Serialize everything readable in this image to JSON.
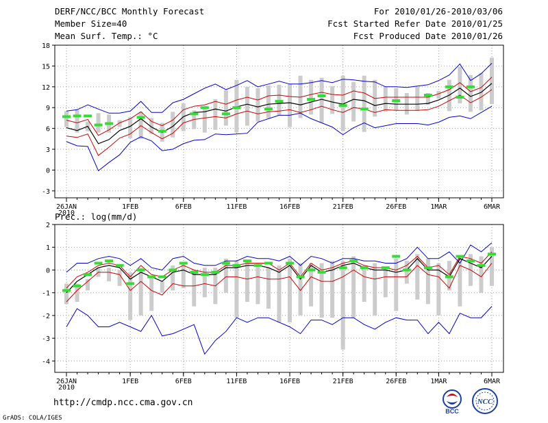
{
  "header": {
    "title": "DERF/NCC/BCC Monthly Forecast",
    "member_size": "Member Size=40",
    "period": "For 2010/01/26-2010/03/06",
    "fcst_started": "Fcst Started Refer Date 2010/01/25",
    "fcst_produced": "Fcst Produced Date 2010/01/26"
  },
  "footer": {
    "url": "http://cmdp.ncc.cma.gov.cn",
    "grads_credit": "GrADS: COLA/IGES"
  },
  "logos": {
    "bcc_text": "BCC",
    "ncc_text": "NCC"
  },
  "colors": {
    "ensemble_range": "#0000cc",
    "spread_band": "#cc0000",
    "ensemble_mean": "#000000",
    "observation": "#33dd33",
    "member_bar": "#cccccc",
    "grid": "#999999"
  },
  "chart_data": [
    {
      "type": "line",
      "title": "Mean Surf. Temp.: °C",
      "x_tick_labels": [
        "26JAN",
        "1FEB",
        "6FEB",
        "11FEB",
        "16FEB",
        "21FEB",
        "26FEB",
        "1MAR",
        "6MAR"
      ],
      "x_tick_days": [
        0,
        6,
        11,
        16,
        21,
        26,
        31,
        35,
        40
      ],
      "x_sublabel": "2010",
      "ylim": [
        -4,
        18
      ],
      "yticks": [
        -3,
        0,
        3,
        6,
        9,
        12,
        15,
        18
      ],
      "days": [
        0,
        1,
        2,
        3,
        4,
        5,
        6,
        7,
        8,
        9,
        10,
        11,
        12,
        13,
        14,
        15,
        16,
        17,
        18,
        19,
        20,
        21,
        22,
        23,
        24,
        25,
        26,
        27,
        28,
        29,
        30,
        31,
        32,
        33,
        34,
        35,
        36,
        37,
        38,
        39,
        40
      ],
      "series": [
        {
          "name": "max",
          "values": [
            8.5,
            8.7,
            9.4,
            8.8,
            8.2,
            8.2,
            8.5,
            9.9,
            8.3,
            8.3,
            9.7,
            10.2,
            11.0,
            11.8,
            12.4,
            11.6,
            12.2,
            12.9,
            12.0,
            12.4,
            12.8,
            12.4,
            12.4,
            12.6,
            12.9,
            12.6,
            13.1,
            13.0,
            12.8,
            12.7,
            12.0,
            12.0,
            11.9,
            12.1,
            12.3,
            12.9,
            13.7,
            15.3,
            12.9,
            13.9,
            15.4
          ]
        },
        {
          "name": "upper",
          "values": [
            7.2,
            6.8,
            7.3,
            5.0,
            5.8,
            6.8,
            7.4,
            8.4,
            7.0,
            6.4,
            7.2,
            8.7,
            9.2,
            9.4,
            9.9,
            9.5,
            10.1,
            10.5,
            10.1,
            10.7,
            10.8,
            10.6,
            10.5,
            10.9,
            11.2,
            10.9,
            10.8,
            11.4,
            11.1,
            10.3,
            10.5,
            10.5,
            10.5,
            10.5,
            10.5,
            11.0,
            11.6,
            12.6,
            11.3,
            11.9,
            13.4
          ]
        },
        {
          "name": "mean",
          "values": [
            6.1,
            5.7,
            6.3,
            3.8,
            4.4,
            5.7,
            6.3,
            7.4,
            6.2,
            5.4,
            6.3,
            7.7,
            8.3,
            8.4,
            8.8,
            8.5,
            9.1,
            9.5,
            9.1,
            9.5,
            9.6,
            9.7,
            9.4,
            9.8,
            10.2,
            9.8,
            9.5,
            10.2,
            10.0,
            9.3,
            9.6,
            9.5,
            9.5,
            9.5,
            9.6,
            10.1,
            10.8,
            11.8,
            10.6,
            11.2,
            12.5
          ]
        },
        {
          "name": "lower",
          "values": [
            4.9,
            4.7,
            5.2,
            2.1,
            3.3,
            4.6,
            5.2,
            6.4,
            5.4,
            4.5,
            5.3,
            6.8,
            7.3,
            7.5,
            7.7,
            7.5,
            8.1,
            8.5,
            8.1,
            8.4,
            8.5,
            8.7,
            8.3,
            8.7,
            9.2,
            8.7,
            8.3,
            9.0,
            8.8,
            8.3,
            8.7,
            8.6,
            8.6,
            8.6,
            8.7,
            9.2,
            10.0,
            10.8,
            9.7,
            10.5,
            11.6
          ]
        },
        {
          "name": "min",
          "values": [
            4.1,
            3.5,
            3.4,
            -0.1,
            1.1,
            2.2,
            4.0,
            4.8,
            4.2,
            2.8,
            3.0,
            3.8,
            4.3,
            4.4,
            5.2,
            5.1,
            5.2,
            5.3,
            6.9,
            7.4,
            7.9,
            7.9,
            8.2,
            7.4,
            6.8,
            6.2,
            5.1,
            6.1,
            6.8,
            6.1,
            6.4,
            6.7,
            6.7,
            6.7,
            6.5,
            6.9,
            7.6,
            7.8,
            7.4,
            8.3,
            9.2
          ]
        },
        {
          "name": "observed",
          "values": [
            7.7,
            7.8,
            7.8,
            6.5,
            6.7,
            null,
            null,
            7.6,
            null,
            5.6,
            null,
            null,
            8.1,
            9.0,
            null,
            8.1,
            9.0,
            null,
            null,
            8.8,
            9.9,
            null,
            null,
            10.2,
            10.7,
            null,
            9.3,
            null,
            8.8,
            null,
            null,
            10.0,
            null,
            null,
            10.8,
            null,
            12.0,
            10.5,
            12.0,
            null,
            null
          ]
        },
        {
          "name": "bar_top",
          "values": [
            8.5,
            8.7,
            7.0,
            8.2,
            8.0,
            7.2,
            7.6,
            8.4,
            7.5,
            6.8,
            8.4,
            9.6,
            8.6,
            8.9,
            10.2,
            11.5,
            13.0,
            12.0,
            11.8,
            12.2,
            12.3,
            12.4,
            13.6,
            13.0,
            13.3,
            12.1,
            13.6,
            12.7,
            13.6,
            13.0,
            12.0,
            11.8,
            11.1,
            12.0,
            11.1,
            11.4,
            13.0,
            14.9,
            13.7,
            14.0,
            16.2
          ]
        },
        {
          "name": "bar_bottom",
          "values": [
            6.2,
            5.4,
            5.6,
            5.4,
            5.4,
            6.2,
            4.6,
            4.5,
            5.2,
            4.1,
            4.7,
            5.6,
            5.9,
            5.4,
            5.8,
            6.4,
            5.4,
            6.4,
            7.0,
            7.5,
            7.9,
            6.2,
            7.5,
            8.0,
            6.8,
            8.1,
            5.6,
            7.0,
            5.5,
            7.7,
            8.4,
            8.6,
            8.0,
            8.5,
            9.4,
            10.3,
            8.5,
            9.6,
            8.4,
            8.6,
            9.5
          ]
        }
      ]
    },
    {
      "type": "line",
      "title": "Prec.: log(mm/d)",
      "x_tick_labels": [
        "26JAN",
        "1FEB",
        "6FEB",
        "11FEB",
        "16FEB",
        "21FEB",
        "26FEB",
        "1MAR",
        "6MAR"
      ],
      "x_tick_days": [
        0,
        6,
        11,
        16,
        21,
        26,
        31,
        35,
        40
      ],
      "x_sublabel": "2010",
      "ylim": [
        -4.5,
        2
      ],
      "yticks": [
        -4,
        -3,
        -2,
        -1,
        0,
        1,
        2
      ],
      "days": [
        0,
        1,
        2,
        3,
        4,
        5,
        6,
        7,
        8,
        9,
        10,
        11,
        12,
        13,
        14,
        15,
        16,
        17,
        18,
        19,
        20,
        21,
        22,
        23,
        24,
        25,
        26,
        27,
        28,
        29,
        30,
        31,
        32,
        33,
        34,
        35,
        36,
        37,
        38,
        39,
        40
      ],
      "series": [
        {
          "name": "max",
          "values": [
            -0.1,
            0.3,
            0.3,
            0.5,
            0.6,
            0.5,
            0.2,
            0.5,
            0.1,
            0.0,
            0.5,
            0.6,
            0.3,
            0.2,
            0.2,
            0.4,
            0.4,
            0.6,
            0.5,
            0.5,
            0.4,
            0.6,
            0.2,
            0.6,
            0.5,
            0.3,
            0.5,
            0.5,
            0.4,
            0.4,
            0.3,
            0.3,
            0.5,
            1.0,
            0.5,
            0.5,
            0.8,
            0.3,
            1.1,
            0.8,
            1.2
          ]
        },
        {
          "name": "upper",
          "values": [
            -0.8,
            -0.3,
            -0.1,
            0.2,
            0.3,
            0.2,
            -0.3,
            0.2,
            -0.2,
            -0.3,
            0.0,
            0.2,
            0.0,
            -0.1,
            -0.1,
            0.2,
            0.2,
            0.3,
            0.3,
            0.3,
            0.0,
            0.3,
            -0.3,
            0.3,
            0.0,
            0.1,
            0.3,
            0.4,
            0.2,
            0.1,
            0.1,
            0.0,
            0.2,
            0.6,
            0.1,
            0.2,
            -0.2,
            0.6,
            0.5,
            0.3,
            0.8
          ]
        },
        {
          "name": "mean",
          "values": [
            -1.0,
            -0.5,
            -0.2,
            0.1,
            0.2,
            0.1,
            -0.4,
            -0.1,
            -0.3,
            -0.5,
            -0.1,
            0.0,
            -0.2,
            -0.2,
            -0.2,
            0.1,
            0.1,
            0.2,
            0.2,
            0.1,
            -0.1,
            0.2,
            -0.4,
            0.2,
            -0.1,
            0.0,
            0.2,
            0.3,
            0.1,
            0.0,
            0.0,
            -0.1,
            0.0,
            0.5,
            0.0,
            0.0,
            -0.3,
            0.5,
            0.3,
            0.1,
            0.6
          ]
        },
        {
          "name": "lower",
          "values": [
            -1.4,
            -0.9,
            -0.5,
            -0.1,
            -0.1,
            -0.2,
            -0.9,
            -0.5,
            -0.9,
            -1.1,
            -0.6,
            -0.7,
            -0.7,
            -0.6,
            -0.7,
            -0.3,
            -0.3,
            -0.4,
            -0.3,
            -0.4,
            -0.4,
            -0.3,
            -0.9,
            -0.3,
            -0.5,
            -0.5,
            -0.3,
            0.0,
            -0.3,
            -0.4,
            -0.3,
            -0.3,
            -0.3,
            0.2,
            -0.2,
            -0.3,
            -0.8,
            0.2,
            0.0,
            -0.3,
            0.3
          ]
        },
        {
          "name": "min",
          "values": [
            -2.5,
            -1.7,
            -2.0,
            -2.5,
            -2.5,
            -2.3,
            -2.5,
            -2.7,
            -2.0,
            -2.9,
            -2.8,
            -2.6,
            -2.4,
            -3.7,
            -3.1,
            -2.7,
            -2.1,
            -2.3,
            -2.1,
            -2.1,
            -2.3,
            -2.5,
            -2.8,
            -2.2,
            -2.2,
            -2.4,
            -2.1,
            -2.1,
            -2.4,
            -2.6,
            -2.3,
            -2.1,
            -2.2,
            -2.2,
            -2.8,
            -2.3,
            -2.8,
            -1.9,
            -2.1,
            -2.1,
            -1.6
          ]
        },
        {
          "name": "observed",
          "values": [
            -0.9,
            -0.7,
            -0.2,
            0.3,
            0.4,
            0.2,
            -0.6,
            0.0,
            -0.3,
            -0.3,
            0.0,
            0.3,
            -0.1,
            -0.2,
            -0.1,
            0.3,
            0.2,
            0.4,
            0.2,
            0.3,
            null,
            0.3,
            -0.3,
            0.0,
            -0.1,
            null,
            0.1,
            0.4,
            0.1,
            null,
            0.1,
            0.6,
            0.0,
            null,
            0.1,
            null,
            -0.3,
            0.6,
            0.4,
            0.2,
            0.7
          ]
        },
        {
          "name": "bar_top",
          "values": [
            -0.6,
            -0.6,
            -0.4,
            0.1,
            0.1,
            0.0,
            -0.1,
            0.1,
            -0.3,
            -0.5,
            0.2,
            0.3,
            0.0,
            0.1,
            0.1,
            0.5,
            0.4,
            0.4,
            0.3,
            0.1,
            0.2,
            0.5,
            0.3,
            0.3,
            0.3,
            0.4,
            0.4,
            0.6,
            0.2,
            0.3,
            0.1,
            0.5,
            0.4,
            0.7,
            0.5,
            0.3,
            0.4,
            0.6,
            0.7,
            0.6,
            1.0
          ]
        },
        {
          "name": "bar_bottom",
          "values": [
            -1.5,
            -1.4,
            -0.9,
            -0.3,
            -0.5,
            -0.7,
            -2.2,
            -2.0,
            -1.8,
            -1.0,
            -0.9,
            -0.8,
            -1.6,
            -1.2,
            -1.5,
            -1.0,
            -2.1,
            -1.4,
            -1.5,
            -1.7,
            -2.3,
            -2.3,
            -2.0,
            -1.6,
            -2.1,
            -2.1,
            -3.5,
            -2.1,
            -1.4,
            -2.0,
            -1.2,
            -1.8,
            -0.6,
            -1.3,
            -1.5,
            -2.0,
            -0.9,
            -1.6,
            -0.7,
            -1.0,
            -0.7
          ]
        }
      ]
    }
  ]
}
